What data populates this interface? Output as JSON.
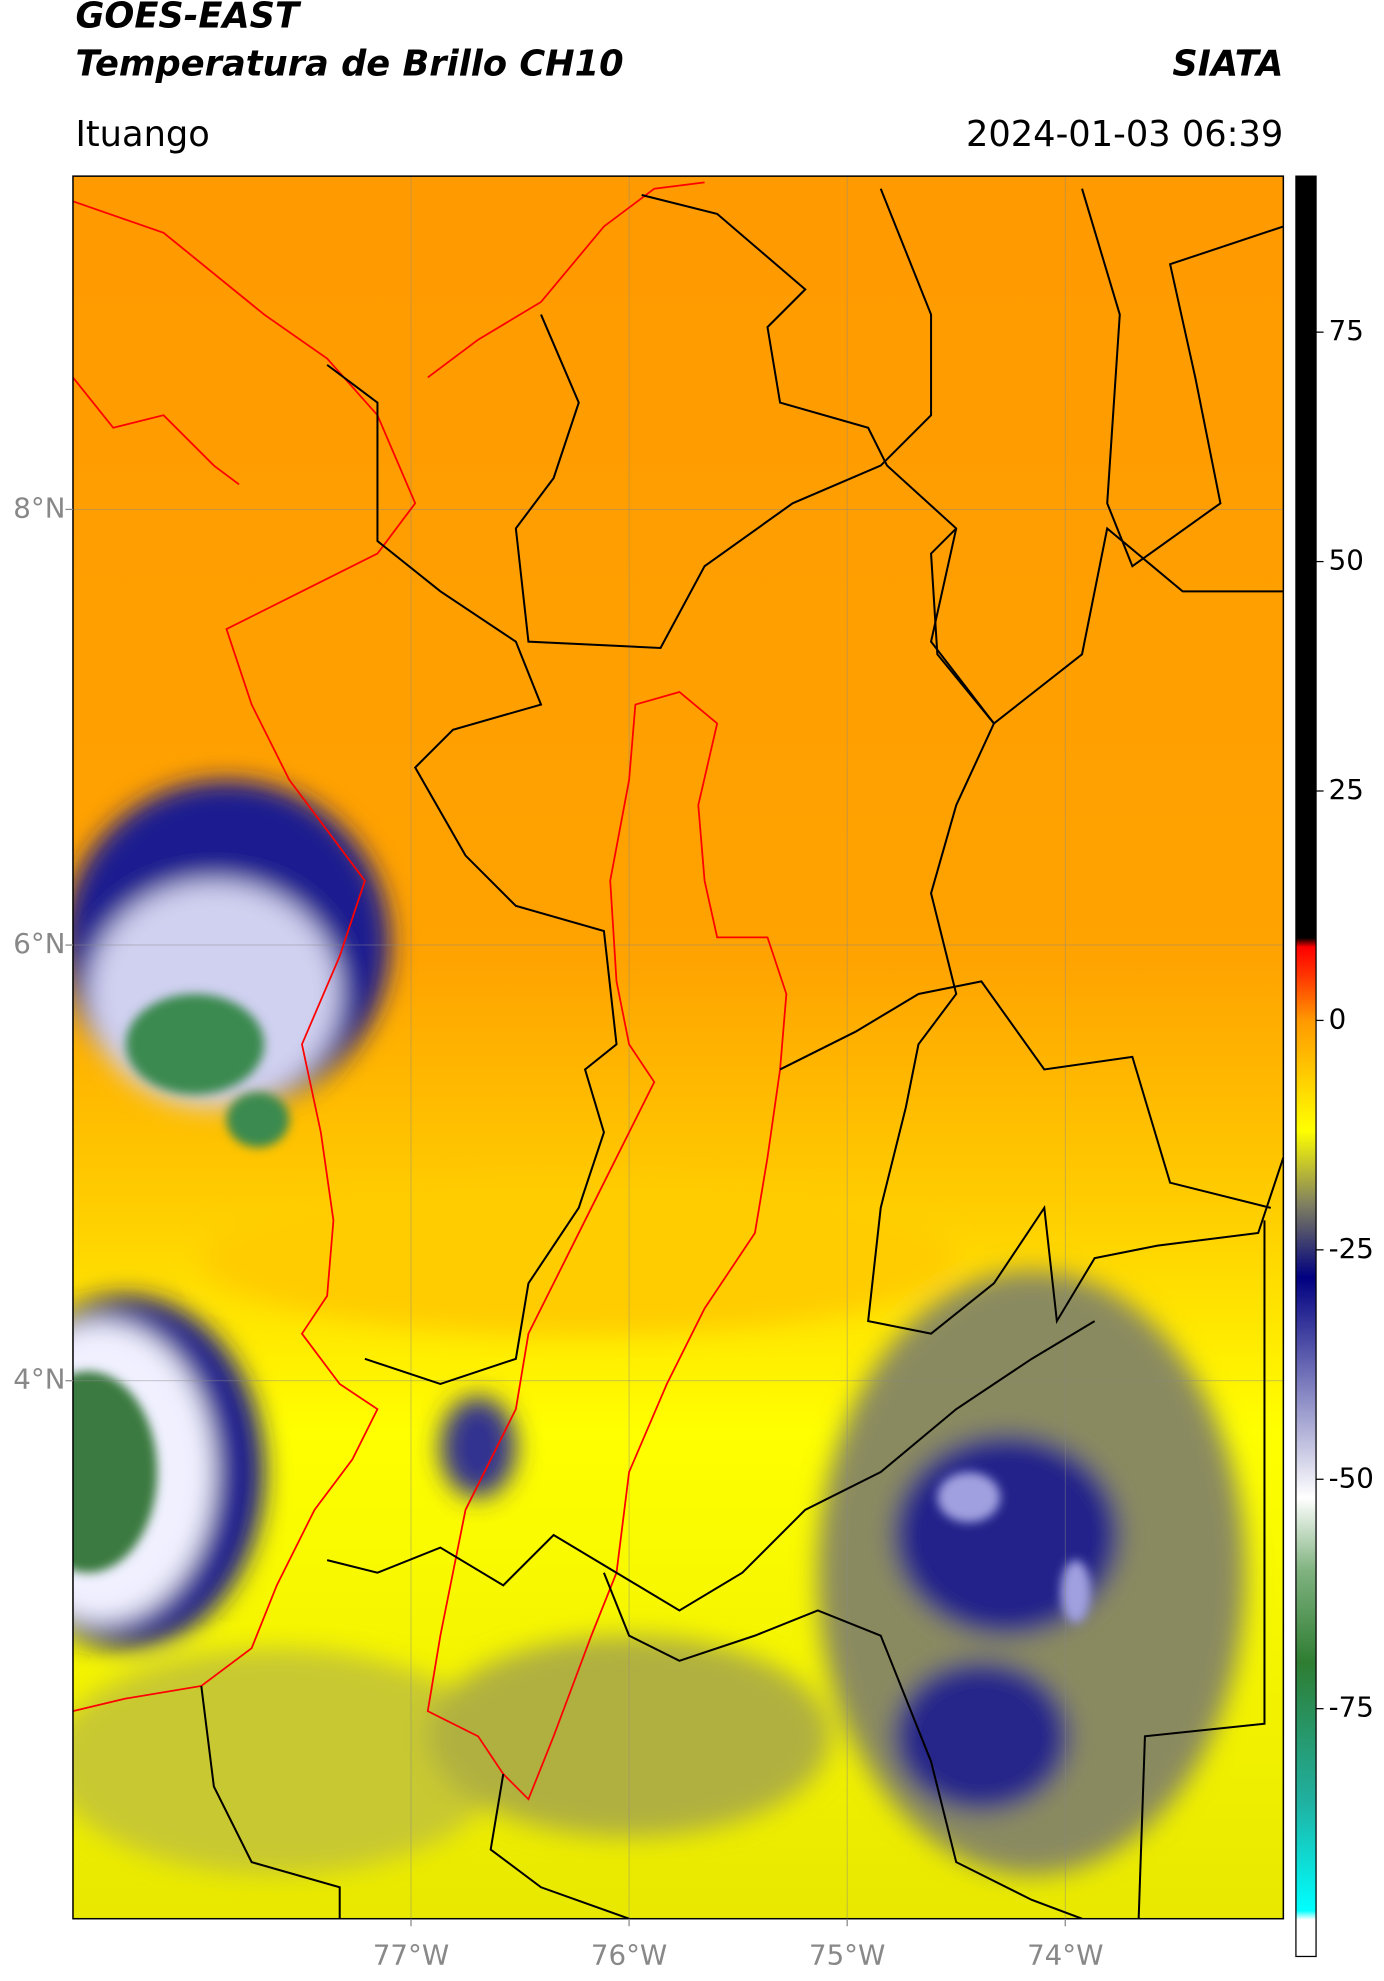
{
  "header": {
    "title": "GOES-EAST",
    "subtitle": "Temperatura de Brillo CH10",
    "source": "SIATA",
    "location": "Ituango",
    "datetime": "2024-01-03 06:39"
  },
  "map": {
    "xlim": [
      -78.55,
      -73.0
    ],
    "ylim": [
      1.53,
      9.53
    ],
    "xticks": [
      {
        "value": -77,
        "label": "77°W"
      },
      {
        "value": -76,
        "label": "76°W"
      },
      {
        "value": -75,
        "label": "75°W"
      },
      {
        "value": -74,
        "label": "74°W"
      }
    ],
    "yticks": [
      {
        "value": 8,
        "label": "8°N"
      },
      {
        "value": 6,
        "label": "6°N"
      },
      {
        "value": 4,
        "label": "4°N"
      }
    ],
    "grid": true
  },
  "colorbar": {
    "lim": [
      -102,
      92
    ],
    "ticks": [
      75,
      50,
      25,
      0,
      -25,
      -50,
      -75
    ],
    "stops": [
      [
        -102,
        "#ffffff"
      ],
      [
        -98,
        "#ffffff"
      ],
      [
        -97,
        "#00ffff"
      ],
      [
        -85,
        "#20b0a0"
      ],
      [
        -70,
        "#2e7d32"
      ],
      [
        -60,
        "#7fb27f"
      ],
      [
        -52,
        "#ffffff"
      ],
      [
        -40,
        "#8080c0"
      ],
      [
        -28,
        "#000080"
      ],
      [
        -20,
        "#808060"
      ],
      [
        -12,
        "#ffff00"
      ],
      [
        0,
        "#ff9900"
      ],
      [
        5,
        "#ff3300"
      ],
      [
        8,
        "#ff0000"
      ],
      [
        9,
        "#000000"
      ],
      [
        92,
        "#000000"
      ]
    ]
  }
}
